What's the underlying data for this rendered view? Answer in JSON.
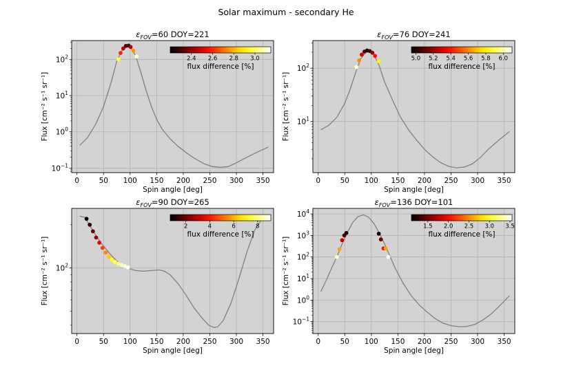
{
  "figure": {
    "suptitle": "Solar maximum - secondary He"
  },
  "colors": {
    "plot_background": "#d3d3d3",
    "grid": "#b0b0b0",
    "curve": "#808080",
    "colormap": "hot"
  },
  "chart_data": [
    {
      "type": "line",
      "title_eps": "60",
      "title_doy": "DOY=221",
      "xlabel": "Spin angle [deg]",
      "ylabel": "Flux [cm⁻² s⁻¹ sr⁻¹]",
      "xlim": [
        -10,
        370
      ],
      "xticks": [
        0,
        50,
        100,
        150,
        200,
        250,
        300,
        350
      ],
      "yscale": "log",
      "ylim": [
        0.075,
        330
      ],
      "yticks": [
        {
          "v": 0.1,
          "b": "10",
          "e": "−1"
        },
        {
          "v": 1,
          "b": "10",
          "e": "0"
        },
        {
          "v": 10,
          "b": "10",
          "e": "1"
        },
        {
          "v": 100,
          "b": "10",
          "e": "2"
        }
      ],
      "curve": {
        "x": [
          5,
          20,
          35,
          50,
          65,
          75,
          85,
          92,
          100,
          110,
          120,
          130,
          140,
          150,
          160,
          175,
          190,
          205,
          220,
          240,
          255,
          270,
          285,
          300,
          320,
          340,
          360
        ],
        "y": [
          0.42,
          0.7,
          1.6,
          5,
          25,
          90,
          180,
          230,
          220,
          130,
          45,
          14,
          5,
          2.2,
          1.2,
          0.65,
          0.4,
          0.27,
          0.19,
          0.13,
          0.11,
          0.105,
          0.11,
          0.14,
          0.2,
          0.28,
          0.38
        ]
      },
      "markers": {
        "x": [
          78,
          82,
          87,
          92,
          97,
          101,
          106,
          112
        ],
        "y": [
          100,
          150,
          200,
          235,
          240,
          220,
          175,
          120
        ],
        "values": [
          2.95,
          2.6,
          2.45,
          2.3,
          2.3,
          2.45,
          2.75,
          3.1
        ]
      },
      "colorbar": {
        "label": "flux difference [%]",
        "min": 2.2,
        "max": 3.15,
        "ticks": [
          "2.4",
          "2.6",
          "2.8",
          "3.0"
        ],
        "tick_values": [
          2.4,
          2.6,
          2.8,
          3.0
        ]
      }
    },
    {
      "type": "line",
      "title_eps": "76",
      "title_doy": "DOY=241",
      "xlabel": "Spin angle [deg]",
      "ylabel": "Flux [cm⁻² s⁻¹ sr⁻¹]",
      "xlim": [
        -10,
        370
      ],
      "xticks": [
        0,
        50,
        100,
        150,
        200,
        250,
        300,
        350
      ],
      "yscale": "log",
      "ylim": [
        1.1,
        330
      ],
      "yticks": [
        {
          "v": 10,
          "b": "10",
          "e": "1"
        },
        {
          "v": 100,
          "b": "10",
          "e": "2"
        }
      ],
      "curve": {
        "x": [
          5,
          20,
          35,
          50,
          60,
          70,
          80,
          90,
          98,
          105,
          115,
          125,
          140,
          155,
          170,
          185,
          200,
          215,
          230,
          245,
          260,
          275,
          290,
          305,
          320,
          340,
          360
        ],
        "y": [
          7,
          8.5,
          12,
          22,
          40,
          80,
          150,
          200,
          210,
          180,
          110,
          55,
          25,
          12,
          7,
          4.5,
          3,
          2.2,
          1.7,
          1.45,
          1.35,
          1.4,
          1.6,
          2.1,
          3,
          4.5,
          6.5
        ]
      },
      "markers": {
        "x": [
          72,
          77,
          82,
          87,
          92,
          97,
          102,
          107,
          114
        ],
        "y": [
          105,
          140,
          180,
          205,
          215,
          210,
          195,
          170,
          135
        ],
        "values": [
          6.05,
          5.6,
          5.3,
          5.1,
          5.0,
          5.05,
          5.2,
          5.4,
          5.8
        ]
      },
      "colorbar": {
        "label": "flux difference [%]",
        "min": 4.95,
        "max": 6.1,
        "ticks": [
          "5.0",
          "5.2",
          "5.4",
          "5.6",
          "5.8",
          "6.0"
        ],
        "tick_values": [
          5.0,
          5.2,
          5.4,
          5.6,
          5.8,
          6.0
        ]
      }
    },
    {
      "type": "line",
      "title_eps": "90",
      "title_doy": "DOY=265",
      "xlabel": "Spin angle [deg]",
      "ylabel": "Flux [cm⁻² s⁻¹ sr⁻¹]",
      "xlim": [
        -10,
        370
      ],
      "xticks": [
        0,
        50,
        100,
        150,
        200,
        250,
        300,
        350
      ],
      "yscale": "log",
      "ylim": [
        35,
        260
      ],
      "yticks": [
        {
          "v": 100,
          "b": "10",
          "e": "2"
        }
      ],
      "curve": {
        "x": [
          5,
          15,
          25,
          35,
          45,
          55,
          65,
          75,
          85,
          95,
          110,
          125,
          140,
          155,
          165,
          175,
          190,
          205,
          220,
          235,
          248,
          258,
          265,
          275,
          290,
          305,
          320,
          335,
          350,
          362
        ],
        "y": [
          230,
          225,
          195,
          170,
          150,
          135,
          122,
          112,
          105,
          100,
          96,
          95,
          96,
          97,
          95,
          90,
          78,
          65,
          53,
          45,
          40,
          38.5,
          39,
          43,
          57,
          85,
          130,
          185,
          225,
          235
        ]
      },
      "markers": {
        "x": [
          18,
          24,
          30,
          36,
          42,
          48,
          54,
          60,
          66,
          72,
          78,
          84,
          90,
          96
        ],
        "y": [
          220,
          200,
          180,
          163,
          150,
          138,
          128,
          120,
          114,
          110,
          107,
          105,
          103,
          101
        ],
        "values": [
          0.8,
          1.2,
          1.8,
          2.6,
          3.5,
          4.5,
          5.5,
          6.3,
          7.0,
          7.6,
          8.1,
          8.5,
          8.8,
          9.0
        ]
      },
      "colorbar": {
        "label": "flux difference [%]",
        "min": 0.7,
        "max": 9.1,
        "ticks": [
          "2",
          "4",
          "6",
          "8"
        ],
        "tick_values": [
          2,
          4,
          6,
          8
        ]
      }
    },
    {
      "type": "line",
      "title_eps": "136",
      "title_doy": "DOY=101",
      "xlabel": "Spin angle [deg]",
      "ylabel": "Flux [cm⁻² s⁻¹ sr⁻¹]",
      "xlim": [
        -10,
        370
      ],
      "xticks": [
        0,
        50,
        100,
        150,
        200,
        250,
        300,
        350
      ],
      "yscale": "log",
      "ylim": [
        0.028,
        18000
      ],
      "yticks": [
        {
          "v": 0.1,
          "b": "10",
          "e": "−1"
        },
        {
          "v": 1,
          "b": "10",
          "e": "0"
        },
        {
          "v": 10,
          "b": "10",
          "e": "1"
        },
        {
          "v": 100,
          "b": "10",
          "e": "2"
        },
        {
          "v": 1000,
          "b": "10",
          "e": "3"
        },
        {
          "v": 10000,
          "b": "10",
          "e": "4"
        }
      ],
      "curve": {
        "x": [
          5,
          15,
          25,
          35,
          45,
          55,
          65,
          75,
          85,
          95,
          105,
          115,
          125,
          135,
          145,
          160,
          175,
          190,
          205,
          220,
          235,
          250,
          265,
          280,
          295,
          310,
          325,
          340,
          360
        ],
        "y": [
          2.5,
          8,
          30,
          100,
          400,
          1400,
          4000,
          7500,
          9000,
          7000,
          3500,
          1300,
          400,
          110,
          30,
          6,
          1.6,
          0.6,
          0.28,
          0.14,
          0.085,
          0.065,
          0.058,
          0.06,
          0.075,
          0.12,
          0.22,
          0.5,
          1.6
        ]
      },
      "markers": {
        "x": [
          35,
          40,
          45,
          49,
          53,
          114,
          118,
          123,
          127,
          132
        ],
        "y": [
          100,
          230,
          600,
          1000,
          1300,
          1200,
          650,
          250,
          250,
          100
        ],
        "values": [
          3.4,
          2.6,
          1.8,
          1.4,
          1.2,
          1.2,
          1.5,
          2.0,
          2.6,
          3.5
        ]
      },
      "colorbar": {
        "label": "flux difference [%]",
        "min": 1.1,
        "max": 3.55,
        "ticks": [
          "1.5",
          "2.0",
          "2.5",
          "3.0",
          "3.5"
        ],
        "tick_values": [
          1.5,
          2.0,
          2.5,
          3.0,
          3.5
        ]
      }
    }
  ]
}
